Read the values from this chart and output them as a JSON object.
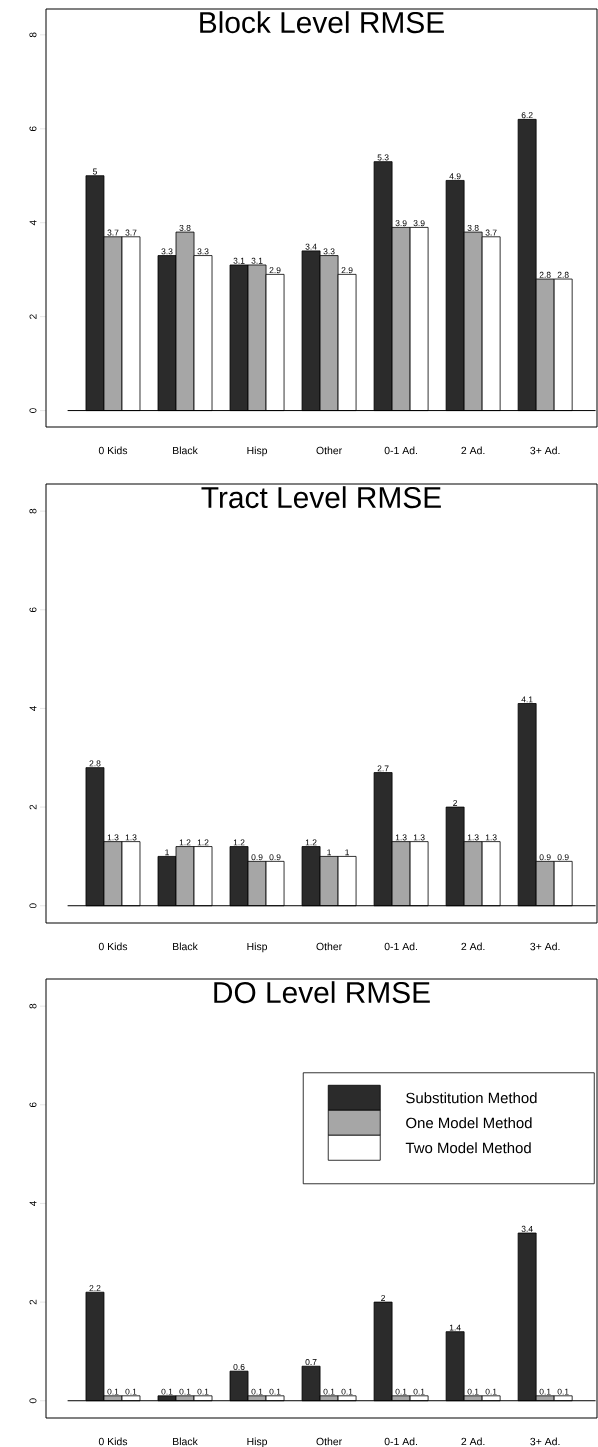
{
  "chart_data": [
    {
      "type": "bar",
      "title": "Block Level RMSE",
      "categories": [
        "0 Kids",
        "Black",
        "Hisp",
        "Other",
        "0-1 Ad.",
        "2 Ad.",
        "3+ Ad."
      ],
      "ylim": [
        -0.35,
        8.55
      ],
      "yticks": [
        0,
        2,
        4,
        6,
        8
      ],
      "data_labels": true,
      "ref_lines": [
        {
          "axis": "y",
          "value": 0
        }
      ],
      "series": [
        {
          "color": "#2b2b2b",
          "values": [
            5,
            3.3,
            3.1,
            3.4,
            5.3,
            4.9,
            6.2
          ]
        },
        {
          "color": "#a6a6a6",
          "values": [
            3.7,
            3.8,
            3.1,
            3.3,
            3.9,
            3.8,
            2.8
          ]
        },
        {
          "color": "#ffffff",
          "values": [
            3.7,
            3.3,
            2.9,
            2.9,
            3.9,
            3.7,
            2.8
          ]
        }
      ]
    },
    {
      "type": "bar",
      "title": "Tract Level RMSE",
      "categories": [
        "0 Kids",
        "Black",
        "Hisp",
        "Other",
        "0-1 Ad.",
        "2 Ad.",
        "3+ Ad."
      ],
      "ylim": [
        -0.35,
        8.55
      ],
      "yticks": [
        0,
        2,
        4,
        6,
        8
      ],
      "data_labels": true,
      "ref_lines": [
        {
          "axis": "y",
          "value": 0
        }
      ],
      "series": [
        {
          "color": "#2b2b2b",
          "values": [
            2.8,
            1,
            1.2,
            1.2,
            2.7,
            2,
            4.1
          ]
        },
        {
          "color": "#a6a6a6",
          "values": [
            1.3,
            1.2,
            0.9,
            1,
            1.3,
            1.3,
            0.9
          ]
        },
        {
          "color": "#ffffff",
          "values": [
            1.3,
            1.2,
            0.9,
            1,
            1.3,
            1.3,
            0.9
          ]
        }
      ]
    },
    {
      "type": "bar",
      "title": "DO Level RMSE",
      "categories": [
        "0 Kids",
        "Black",
        "Hisp",
        "Other",
        "0-1 Ad.",
        "2 Ad.",
        "3+ Ad."
      ],
      "ylim": [
        -0.35,
        8.55
      ],
      "yticks": [
        0,
        2,
        4,
        6,
        8
      ],
      "data_labels": true,
      "legend": "right",
      "ref_lines": [
        {
          "axis": "y",
          "value": 0
        }
      ],
      "series": [
        {
          "name": "Substitution Method",
          "color": "#2b2b2b",
          "values": [
            2.2,
            0.1,
            0.6,
            0.7,
            2,
            1.4,
            3.4
          ]
        },
        {
          "name": "One Model Method",
          "color": "#a6a6a6",
          "values": [
            0.1,
            0.1,
            0.1,
            0.1,
            0.1,
            0.1,
            0.1
          ]
        },
        {
          "name": "Two Model Method",
          "color": "#ffffff",
          "values": [
            0.1,
            0.1,
            0.1,
            0.1,
            0.1,
            0.1,
            0.1
          ]
        }
      ]
    }
  ]
}
